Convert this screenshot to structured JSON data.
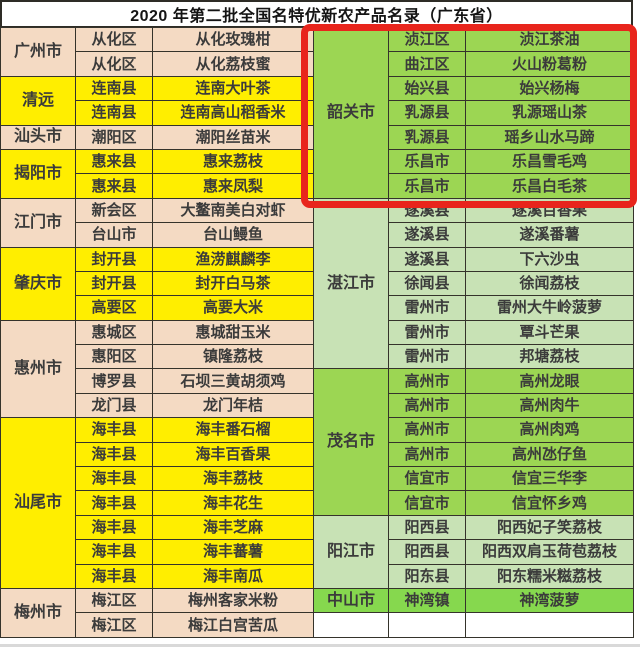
{
  "title": "2020 年第二批全国名特优新农产品名录（广东省）",
  "colors": {
    "peach": "#F4DAC3",
    "yellow": "#FFEE00",
    "green_mid": "#9CD653",
    "green_pale": "#C8E2B5",
    "green_bright": "#86D84E",
    "white": "#FFFFFF",
    "highlight_red": "#E8251C",
    "border": "#35332B",
    "text": "#3B3B3B"
  },
  "table": {
    "columns": [
      "city",
      "district",
      "product"
    ],
    "left_groups": [
      {
        "city": "广州市",
        "color_key": "peach",
        "rows": [
          [
            "从化区",
            "从化玫瑰柑"
          ],
          [
            "从化区",
            "从化荔枝蜜"
          ]
        ]
      },
      {
        "city": "清远",
        "color_key": "yellow",
        "rows": [
          [
            "连南县",
            "连南大叶茶"
          ],
          [
            "连南县",
            "连南高山稻香米"
          ]
        ]
      },
      {
        "city": "汕头市",
        "color_key": "peach",
        "rows": [
          [
            "潮阳区",
            "潮阳丝苗米"
          ]
        ]
      },
      {
        "city": "揭阳市",
        "color_key": "yellow",
        "rows": [
          [
            "惠来县",
            "惠来荔枝"
          ],
          [
            "惠来县",
            "惠来凤梨"
          ]
        ]
      },
      {
        "city": "江门市",
        "color_key": "peach",
        "rows": [
          [
            "新会区",
            "大鳌南美白对虾"
          ],
          [
            "台山市",
            "台山鳗鱼"
          ]
        ]
      },
      {
        "city": "肇庆市",
        "color_key": "yellow",
        "rows": [
          [
            "封开县",
            "渔涝麒麟李"
          ],
          [
            "封开县",
            "封开白马茶"
          ],
          [
            "高要区",
            "高要大米"
          ]
        ]
      },
      {
        "city": "惠州市",
        "color_key": "peach",
        "rows": [
          [
            "惠城区",
            "惠城甜玉米"
          ],
          [
            "惠阳区",
            "镇隆荔枝"
          ],
          [
            "博罗县",
            "石坝三黄胡须鸡"
          ],
          [
            "龙门县",
            "龙门年桔"
          ]
        ]
      },
      {
        "city": "汕尾市",
        "color_key": "yellow",
        "rows": [
          [
            "海丰县",
            "海丰番石榴"
          ],
          [
            "海丰县",
            "海丰百香果"
          ],
          [
            "海丰县",
            "海丰荔枝"
          ],
          [
            "海丰县",
            "海丰花生"
          ],
          [
            "海丰县",
            "海丰芝麻"
          ],
          [
            "海丰县",
            "海丰蕃薯"
          ],
          [
            "海丰县",
            "海丰南瓜"
          ]
        ]
      },
      {
        "city": "梅州市",
        "color_key": "peach",
        "rows": [
          [
            "梅江区",
            "梅州客家米粉"
          ],
          [
            "梅江区",
            "梅江白宫苦瓜"
          ]
        ]
      }
    ],
    "right_groups": [
      {
        "city": "韶关市",
        "color_key": "green_mid",
        "highlighted": true,
        "rows": [
          [
            "浈江区",
            "浈江茶油"
          ],
          [
            "曲江区",
            "火山粉葛粉"
          ],
          [
            "始兴县",
            "始兴杨梅"
          ],
          [
            "乳源县",
            "乳源瑶山茶"
          ],
          [
            "乳源县",
            "瑶乡山水马蹄"
          ],
          [
            "乐昌市",
            "乐昌雪毛鸡"
          ],
          [
            "乐昌市",
            "乐昌白毛茶"
          ]
        ]
      },
      {
        "city": "湛江市",
        "color_key": "green_pale",
        "rows": [
          [
            "遂溪县",
            "遂溪百香果"
          ],
          [
            "遂溪县",
            "遂溪番薯"
          ],
          [
            "遂溪县",
            "下六沙虫"
          ],
          [
            "徐闻县",
            "徐闻荔枝"
          ],
          [
            "雷州市",
            "雷州大牛岭菠萝"
          ],
          [
            "雷州市",
            "覃斗芒果"
          ],
          [
            "雷州市",
            "邦塘荔枝"
          ]
        ]
      },
      {
        "city": "茂名市",
        "color_key": "green_mid",
        "rows": [
          [
            "高州市",
            "高州龙眼"
          ],
          [
            "高州市",
            "高州肉牛"
          ],
          [
            "高州市",
            "高州肉鸡"
          ],
          [
            "高州市",
            "高州氹仔鱼"
          ],
          [
            "信宜市",
            "信宜三华李"
          ],
          [
            "信宜市",
            "信宜怀乡鸡"
          ]
        ]
      },
      {
        "city": "阳江市",
        "color_key": "green_pale",
        "rows": [
          [
            "阳西县",
            "阳西妃子笑荔枝"
          ],
          [
            "阳西县",
            "阳西双肩玉荷苞荔枝"
          ],
          [
            "阳东县",
            "阳东糯米糍荔枝"
          ]
        ]
      },
      {
        "city": "中山市",
        "color_key": "green_bright",
        "rows": [
          [
            "神湾镇",
            "神湾菠萝"
          ]
        ]
      },
      {
        "city": "",
        "color_key": "white",
        "rows": [
          [
            "",
            ""
          ]
        ]
      }
    ]
  }
}
